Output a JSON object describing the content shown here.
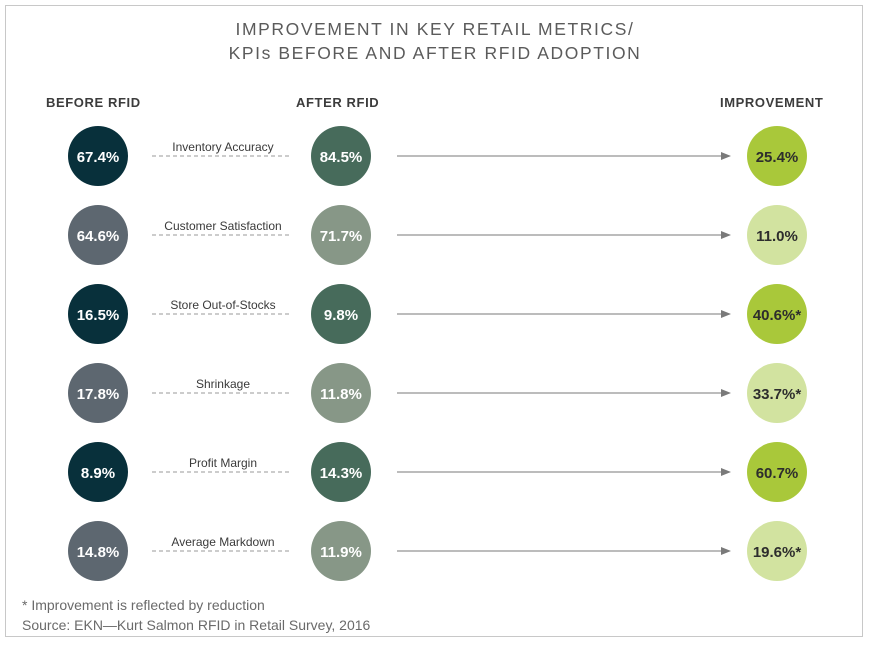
{
  "title": {
    "line1": "IMPROVEMENT IN KEY RETAIL METRICS/",
    "line2": "KPIs BEFORE AND AFTER RFID ADOPTION"
  },
  "colors": {
    "before_dark": "#08303b",
    "before_light": "#5d6770",
    "after_dark": "#476b5b",
    "after_light": "#879787",
    "improve_strong": "#a9c83a",
    "improve_light": "#d2e3a0",
    "line": "#7a7a7a"
  },
  "chart_data": {
    "type": "table",
    "columns": [
      "BEFORE RFID",
      "AFTER RFID",
      "IMPROVEMENT"
    ],
    "rows": [
      {
        "metric": "Inventory Accuracy",
        "before": "67.4%",
        "after": "84.5%",
        "improvement": "25.4%",
        "shade": "dark",
        "improve_style": "strong"
      },
      {
        "metric": "Customer Satisfaction",
        "before": "64.6%",
        "after": "71.7%",
        "improvement": "11.0%",
        "shade": "light",
        "improve_style": "light"
      },
      {
        "metric": "Store Out-of-Stocks",
        "before": "16.5%",
        "after": "9.8%",
        "improvement": "40.6%*",
        "shade": "dark",
        "improve_style": "strong"
      },
      {
        "metric": "Shrinkage",
        "before": "17.8%",
        "after": "11.8%",
        "improvement": "33.7%*",
        "shade": "light",
        "improve_style": "light"
      },
      {
        "metric": "Profit Margin",
        "before": "8.9%",
        "after": "14.3%",
        "improvement": "60.7%",
        "shade": "dark",
        "improve_style": "strong"
      },
      {
        "metric": "Average Markdown",
        "before": "14.8%",
        "after": "11.9%",
        "improvement": "19.6%*",
        "shade": "light",
        "improve_style": "light"
      }
    ]
  },
  "footnotes": {
    "note": "* Improvement is reflected by reduction",
    "source": "Source: EKN—Kurt Salmon RFID in Retail Survey, 2016"
  }
}
